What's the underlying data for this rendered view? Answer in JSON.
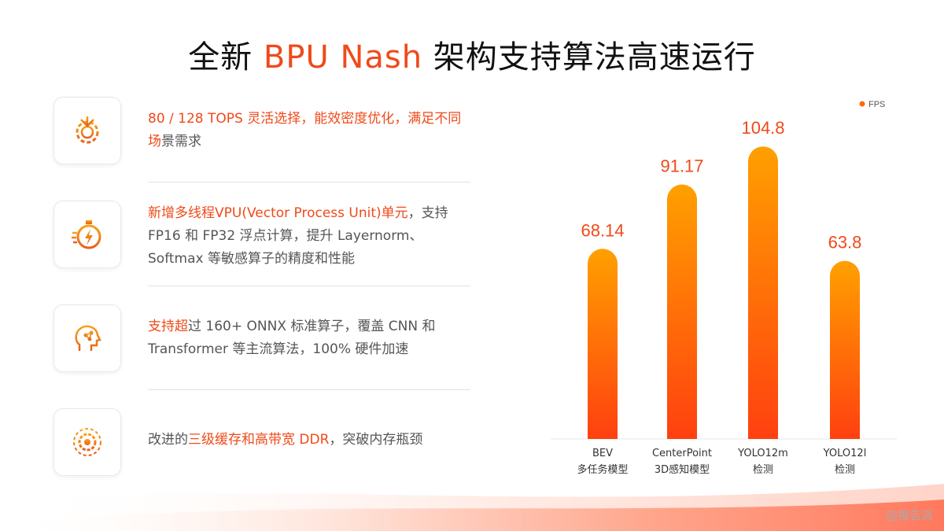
{
  "title": {
    "prefix": "全新 ",
    "accent": "BPU Nash",
    "suffix": " 架构支持算法高速运行"
  },
  "features": [
    {
      "icon": "processor-gear-icon",
      "hl": "80 / 128 TOPS 灵活选择，能效密度优化，满足不同场",
      "rest": "景需求"
    },
    {
      "icon": "stopwatch-lightning-icon",
      "hl": "新增多线程VPU(Vector Process Unit)单元",
      "rest": "，支持 FP16 和 FP32 浮点计算，提升 Layernorm、Softmax 等敏感算子的精度和性能"
    },
    {
      "icon": "brain-circuit-head-icon",
      "hl": "支持超",
      "rest": "过 160+ ONNX 标准算子，覆盖 CNN 和 Transformer 等主流算法，100% 硬件加速"
    },
    {
      "icon": "gear-network-icon",
      "hl_pre": "改进的",
      "hl": "三级缓存和高带宽 DDR",
      "rest": "，突破内存瓶颈"
    }
  ],
  "chart_data": {
    "type": "bar",
    "categories": [
      "BEV 多任务模型",
      "CenterPoint 3D感知模型",
      "YOLO12m 检测",
      "YOLO12l 检测"
    ],
    "category_lines": [
      [
        "BEV",
        "多任务模型"
      ],
      [
        "CenterPoint",
        "3D感知模型"
      ],
      [
        "YOLO12m",
        "检测"
      ],
      [
        "YOLO12l",
        "检测"
      ]
    ],
    "series": [
      {
        "name": "FPS",
        "values": [
          68.14,
          91.17,
          104.8,
          63.8
        ]
      }
    ],
    "value_labels": [
      "68.14",
      "91.17",
      "104.8",
      "63.8"
    ],
    "legend": "top-right",
    "ylim": [
      0,
      115
    ],
    "grid": false,
    "colors": {
      "bar_top": "#ffa000",
      "bar_bottom": "#ff4010",
      "label": "#ef4a1a"
    }
  },
  "watermark": "@报告派"
}
